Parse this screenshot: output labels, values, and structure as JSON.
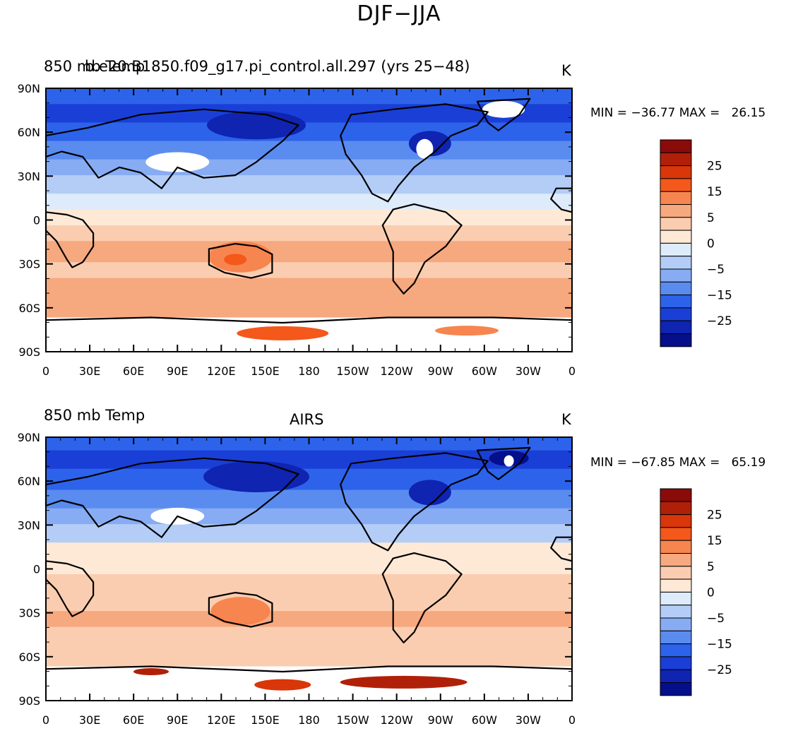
{
  "title": "DJF−JJA",
  "panels": [
    {
      "left_title": "850 mb Temp",
      "center_title": "b.e20.B1850.f09_g17.pi_control.all.297 (yrs 25−48)",
      "units": "K",
      "stats": "MIN = −36.77 MAX =   26.15"
    },
    {
      "left_title": "850 mb Temp",
      "center_title": "AIRS",
      "units": "K",
      "stats": "MIN = −67.85 MAX =   65.19"
    }
  ],
  "lat_labels": [
    "90N",
    "60N",
    "30N",
    "0",
    "30S",
    "60S",
    "90S"
  ],
  "lon_labels": [
    "0",
    "30E",
    "60E",
    "90E",
    "120E",
    "150E",
    "180",
    "150W",
    "120W",
    "90W",
    "60W",
    "30W",
    "0"
  ],
  "colorbar": {
    "labels": [
      "25",
      "15",
      "5",
      "0",
      "−5",
      "−15",
      "−25"
    ],
    "colors": [
      "#8b0a0a",
      "#b02008",
      "#d93609",
      "#f4581b",
      "#f7854f",
      "#f6a87f",
      "#fbcdb0",
      "#fde9d6",
      "#ddebfa",
      "#b3cdf7",
      "#87acf3",
      "#5a8cf0",
      "#2d63ea",
      "#1a3fd6",
      "#0f24b0",
      "#050f8c"
    ]
  },
  "colors": {
    "land_outline": "#000000",
    "missing": "#ffffff"
  }
}
